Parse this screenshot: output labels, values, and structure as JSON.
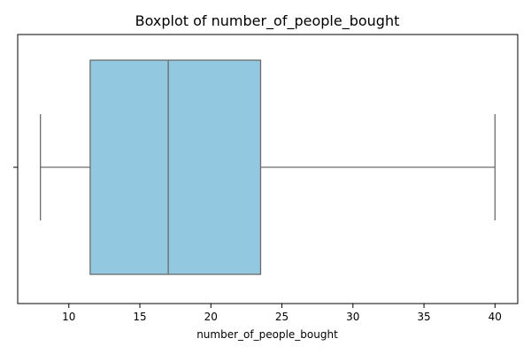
{
  "chart_data": {
    "type": "boxplot",
    "title": "Boxplot of number_of_people_bought",
    "xlabel": "number_of_people_bought",
    "ylabel": "",
    "orientation": "horizontal",
    "xlim": [
      6.4,
      41.6
    ],
    "xticks": [
      10,
      15,
      20,
      25,
      30,
      35,
      40
    ],
    "xtick_labels": [
      "10",
      "15",
      "20",
      "25",
      "30",
      "35",
      "40"
    ],
    "box": {
      "whisker_low": 8,
      "q1": 11.5,
      "median": 17,
      "q3": 23.5,
      "whisker_high": 40
    },
    "grid": false,
    "colors": {
      "box_fill": "#92c8e0",
      "line": "#6b6b6b"
    }
  }
}
